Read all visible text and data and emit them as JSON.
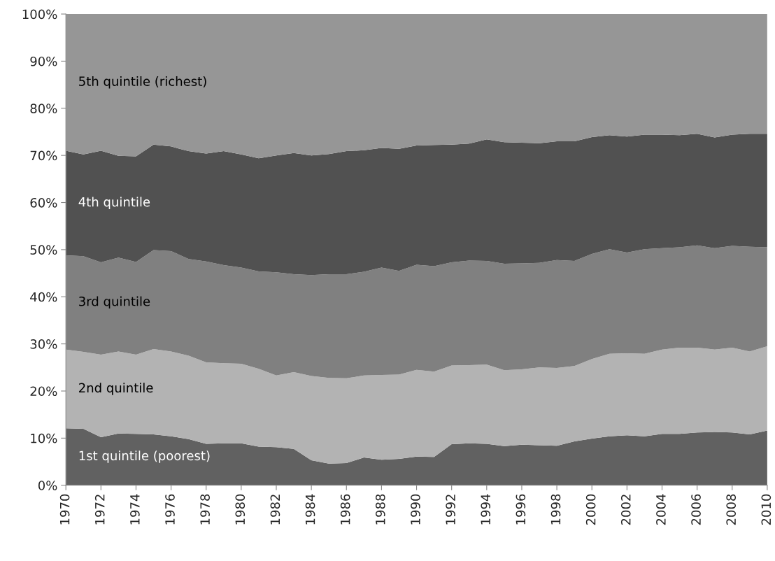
{
  "chart_data": {
    "type": "area",
    "stacked": true,
    "x": [
      1970,
      1971,
      1972,
      1973,
      1974,
      1975,
      1976,
      1977,
      1978,
      1979,
      1980,
      1981,
      1982,
      1983,
      1984,
      1985,
      1986,
      1987,
      1988,
      1989,
      1990,
      1991,
      1992,
      1993,
      1994,
      1995,
      1996,
      1997,
      1998,
      1999,
      2000,
      2001,
      2002,
      2003,
      2004,
      2005,
      2006,
      2007,
      2008,
      2009,
      2010
    ],
    "series": [
      {
        "name": "1st quintile (poorest)",
        "color": "#616161",
        "values": [
          12.1,
          12.0,
          10.2,
          11.0,
          10.9,
          10.8,
          10.4,
          9.8,
          8.8,
          8.9,
          8.9,
          8.2,
          8.1,
          7.7,
          5.3,
          4.6,
          4.7,
          5.9,
          5.4,
          5.6,
          6.1,
          6.0,
          8.7,
          8.9,
          8.8,
          8.3,
          8.6,
          8.5,
          8.4,
          9.3,
          9.9,
          10.4,
          10.6,
          10.4,
          10.9,
          10.9,
          11.2,
          11.3,
          11.2,
          10.8,
          11.6
        ]
      },
      {
        "name": "2nd quintile",
        "color": "#b3b3b3",
        "values": [
          16.7,
          16.3,
          17.5,
          17.4,
          16.8,
          18.1,
          18.0,
          17.7,
          17.3,
          17.0,
          16.9,
          16.5,
          15.2,
          16.3,
          17.9,
          18.2,
          18.0,
          17.4,
          18.0,
          17.9,
          18.4,
          18.1,
          16.7,
          16.6,
          16.8,
          16.1,
          16.0,
          16.5,
          16.5,
          16.0,
          16.9,
          17.5,
          17.4,
          17.5,
          17.9,
          18.3,
          18.0,
          17.5,
          18.0,
          17.6,
          17.9
        ]
      },
      {
        "name": "3rd quintile",
        "color": "#808080",
        "values": [
          20.0,
          20.3,
          19.6,
          19.9,
          19.7,
          21.0,
          21.3,
          20.5,
          21.4,
          20.8,
          20.4,
          20.7,
          21.9,
          20.8,
          21.4,
          22.0,
          22.1,
          22.0,
          22.8,
          22.0,
          22.3,
          22.4,
          21.9,
          22.2,
          22.0,
          22.6,
          22.5,
          22.2,
          22.9,
          22.3,
          22.3,
          22.2,
          21.4,
          22.2,
          21.5,
          21.3,
          21.7,
          21.5,
          21.6,
          22.2,
          21.0
        ]
      },
      {
        "name": "4th quintile",
        "color": "#515151",
        "values": [
          22.2,
          21.6,
          23.7,
          21.6,
          22.4,
          22.4,
          22.2,
          22.9,
          22.9,
          24.2,
          24.0,
          24.0,
          24.8,
          25.7,
          25.4,
          25.5,
          26.1,
          25.8,
          25.4,
          25.9,
          25.3,
          25.7,
          25.0,
          24.8,
          25.8,
          25.8,
          25.6,
          25.4,
          25.2,
          25.4,
          24.8,
          24.2,
          24.6,
          24.3,
          24.1,
          23.8,
          23.7,
          23.5,
          23.6,
          24.0,
          24.1
        ]
      },
      {
        "name": "5th quintile (richest)",
        "color": "#969696",
        "values": [
          29.0,
          29.8,
          29.0,
          30.1,
          30.2,
          27.7,
          28.1,
          29.1,
          29.6,
          29.1,
          29.8,
          30.6,
          30.0,
          29.5,
          30.0,
          29.7,
          29.1,
          28.9,
          28.4,
          28.6,
          27.9,
          27.8,
          27.7,
          27.5,
          26.6,
          27.2,
          27.3,
          27.4,
          27.0,
          27.0,
          26.1,
          25.7,
          26.0,
          25.6,
          25.6,
          25.7,
          25.4,
          26.2,
          25.6,
          25.4,
          25.4
        ]
      }
    ],
    "xlim": [
      1970,
      2010
    ],
    "xticks": [
      1970,
      1972,
      1974,
      1976,
      1978,
      1980,
      1982,
      1984,
      1986,
      1988,
      1990,
      1992,
      1994,
      1996,
      1998,
      2000,
      2002,
      2004,
      2006,
      2008,
      2010
    ],
    "ylim": [
      0,
      100
    ],
    "yticks": [
      {
        "value": 0,
        "label": "0%"
      },
      {
        "value": 10,
        "label": "10%"
      },
      {
        "value": 20,
        "label": "20%"
      },
      {
        "value": 30,
        "label": "30%"
      },
      {
        "value": 40,
        "label": "40%"
      },
      {
        "value": 50,
        "label": "50%"
      },
      {
        "value": 60,
        "label": "60%"
      },
      {
        "value": 70,
        "label": "70%"
      },
      {
        "value": 80,
        "label": "80%"
      },
      {
        "value": 90,
        "label": "90%"
      },
      {
        "value": 100,
        "label": "100%"
      }
    ],
    "legend": false,
    "grid": false
  }
}
